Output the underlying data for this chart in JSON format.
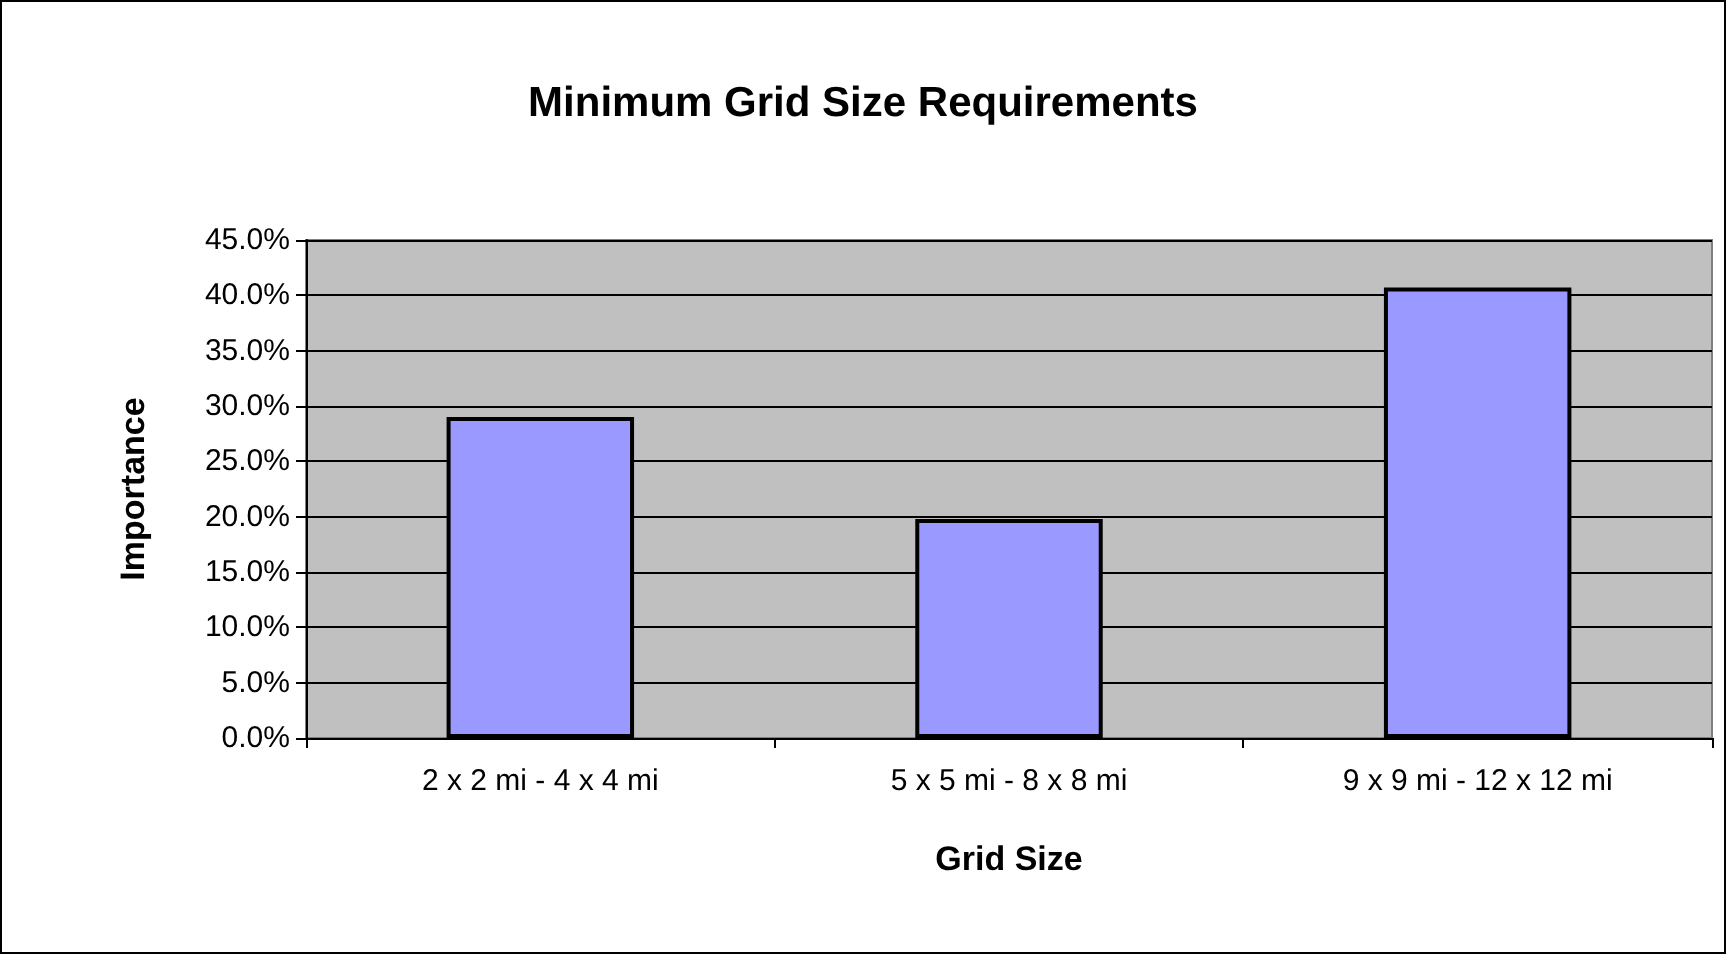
{
  "chart_data": {
    "type": "bar",
    "title": "Minimum Grid Size Requirements",
    "xlabel": "Grid Size",
    "ylabel": "Importance",
    "categories": [
      "2 x 2 mi - 4 x 4 mi",
      "5 x 5 mi - 8 x 8 mi",
      "9 x 9 mi - 12 x 12 mi"
    ],
    "values": [
      29.0,
      19.8,
      40.7
    ],
    "color": "#9999ff",
    "ylim": [
      0,
      45
    ],
    "yticks": [
      {
        "value": 0,
        "label": "0.0%"
      },
      {
        "value": 5,
        "label": "5.0%"
      },
      {
        "value": 10,
        "label": "10.0%"
      },
      {
        "value": 15,
        "label": "15.0%"
      },
      {
        "value": 20,
        "label": "20.0%"
      },
      {
        "value": 25,
        "label": "25.0%"
      },
      {
        "value": 30,
        "label": "30.0%"
      },
      {
        "value": 35,
        "label": "35.0%"
      },
      {
        "value": 40,
        "label": "40.0%"
      },
      {
        "value": 45,
        "label": "45.0%"
      }
    ],
    "grid": "y"
  }
}
